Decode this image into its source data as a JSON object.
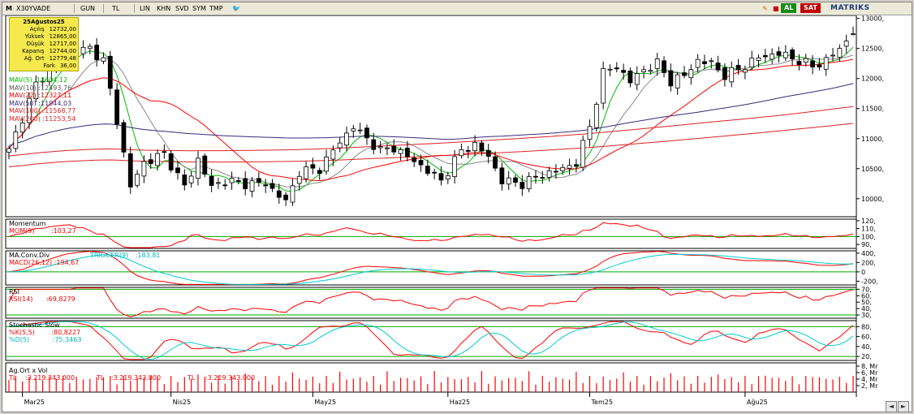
{
  "toolbar": {
    "m_label": "M",
    "symbol": "X30YVADE",
    "period": "GUN",
    "currency": "TL",
    "items": [
      "LIN",
      "KHN",
      "SVD",
      "SYM",
      "TMP"
    ],
    "buy_label": "AL",
    "sell_label": "SAT",
    "brand": "MATRIKS"
  },
  "info_box": {
    "date": "25Ağustos25",
    "rows": [
      {
        "label": "Açılış",
        "value": "12732,00"
      },
      {
        "label": "Yüksek",
        "value": "12865,00"
      },
      {
        "label": "Düşük",
        "value": "12717,00"
      },
      {
        "label": "Kapanış",
        "value": "12744,00"
      },
      {
        "label": "Ağ. Ort",
        "value": "12779,48"
      },
      {
        "label": "Fark",
        "value": "36,00"
      }
    ]
  },
  "colors": {
    "bullish": "#ffffff",
    "bearish": "#000000",
    "mav5": "#00bb00",
    "mav10": "#888888",
    "mav22": "#ff0000",
    "mav50": "#3a2a7a",
    "mav100": "#dd2222",
    "mav200": "#dd2222",
    "macd": "#ff0000",
    "trigger": "#00cccc",
    "rsi": "#ff0000",
    "stoch_k": "#ff0000",
    "stoch_d": "#00cccc",
    "volume": "#ff0000",
    "guide_line": "#00aa00"
  },
  "chart_data": {
    "type": "candlestick",
    "ylim": [
      9700,
      13050
    ],
    "yticks": [
      "13000,",
      "12500,",
      "12000,",
      "11500,",
      "11000,",
      "10500,",
      "10000,"
    ],
    "ytick_values": [
      13000,
      12500,
      12000,
      11500,
      11000,
      10500,
      10000
    ],
    "xticks": [
      {
        "label": "Mar25",
        "index": 2
      },
      {
        "label": "Nis25",
        "index": 24
      },
      {
        "label": "May25",
        "index": 45
      },
      {
        "label": "Haz25",
        "index": 65
      },
      {
        "label": "Tem25",
        "index": 86
      },
      {
        "label": "Ağu25",
        "index": 109
      }
    ],
    "close_anchors": [
      [
        0,
        10800
      ],
      [
        4,
        11900
      ],
      [
        8,
        12400
      ],
      [
        12,
        12500
      ],
      [
        14,
        12300
      ],
      [
        16,
        11300
      ],
      [
        18,
        10200
      ],
      [
        20,
        10600
      ],
      [
        23,
        10750
      ],
      [
        26,
        10200
      ],
      [
        28,
        10650
      ],
      [
        30,
        10200
      ],
      [
        32,
        10300
      ],
      [
        35,
        10250
      ],
      [
        38,
        10250
      ],
      [
        41,
        9950
      ],
      [
        43,
        10450
      ],
      [
        46,
        10500
      ],
      [
        49,
        10950
      ],
      [
        51,
        11200
      ],
      [
        53,
        11000
      ],
      [
        55,
        10800
      ],
      [
        57,
        10850
      ],
      [
        59,
        10700
      ],
      [
        61,
        10550
      ],
      [
        64,
        10300
      ],
      [
        67,
        10800
      ],
      [
        69,
        10900
      ],
      [
        71,
        10700
      ],
      [
        73,
        10300
      ],
      [
        76,
        10250
      ],
      [
        79,
        10400
      ],
      [
        82,
        10500
      ],
      [
        84,
        10600
      ],
      [
        86,
        11200
      ],
      [
        88,
        12100
      ],
      [
        90,
        12200
      ],
      [
        92,
        11950
      ],
      [
        94,
        12150
      ],
      [
        96,
        12250
      ],
      [
        98,
        11950
      ],
      [
        100,
        12050
      ],
      [
        102,
        12300
      ],
      [
        104,
        12250
      ],
      [
        106,
        12050
      ],
      [
        108,
        12150
      ],
      [
        111,
        12350
      ],
      [
        114,
        12420
      ],
      [
        117,
        12300
      ],
      [
        119,
        12200
      ],
      [
        121,
        12300
      ],
      [
        123,
        12500
      ],
      [
        125,
        12744
      ]
    ],
    "info_date": "25Ağustos25",
    "open": 12732.0,
    "high": 12865.0,
    "low": 12717.0,
    "close": 12744.0,
    "weighted_avg": 12779.48,
    "change": 36.0,
    "moving_averages": [
      {
        "name": "MAV(5)",
        "value": "12604,12",
        "period": 5,
        "color": "#00bb00"
      },
      {
        "name": "MAV(10)",
        "value": "12493,76",
        "period": 10,
        "color": "#888888"
      },
      {
        "name": "MAV(22)",
        "value": "12327,11",
        "period": 22,
        "color": "#ff0000"
      },
      {
        "name": "MAV(50)",
        "value": "11944,03",
        "period": 50,
        "color": "#3a2a7a"
      },
      {
        "name": "MAV(100)",
        "value": "11568,77",
        "period": 100,
        "color": "#dd2222"
      },
      {
        "name": "MAV(200)",
        "value": "11253,54",
        "period": 200,
        "color": "#dd2222"
      }
    ]
  },
  "panels": {
    "momentum": {
      "title": "Momentum",
      "label": "MOM(9)",
      "value": ":103,27",
      "yticks": [
        "120,",
        "110,",
        "100,",
        "90,"
      ],
      "ytick_values": [
        120,
        110,
        100,
        90
      ],
      "ylim": [
        85,
        122
      ],
      "guide": 100
    },
    "macd": {
      "title": "MA.Conv.Div",
      "label": "MACD(26,12)",
      "value": ":194,67",
      "trigger_label": "TRIGGER(9)",
      "trigger_value": ":183,81",
      "yticks": [
        "400,",
        "200,",
        "0",
        "-200,"
      ],
      "ytick_values": [
        400,
        200,
        0,
        -200
      ],
      "ylim": [
        -280,
        450
      ],
      "guide": 0
    },
    "rsi": {
      "title": "RSI",
      "label": "RSI(14)",
      "value": ":69,8279",
      "yticks": [
        "70,",
        "60,",
        "50,",
        "40,",
        "30,"
      ],
      "ytick_values": [
        70,
        60,
        50,
        40,
        30
      ],
      "ylim": [
        25,
        73
      ],
      "guides": [
        70,
        30
      ]
    },
    "stochastic": {
      "title": "Stochastic Slow",
      "k_label": "%K(5,5)",
      "k_value": ":80,8227",
      "d_label": "%D(5)",
      "d_value": ":75,3463",
      "yticks": [
        "80,",
        "60,",
        "40,",
        "20,"
      ],
      "ytick_values": [
        80,
        60,
        40,
        20
      ],
      "ylim": [
        12,
        92
      ],
      "guides": [
        80,
        20
      ]
    },
    "volume": {
      "title": "Ag.Ort x Vol",
      "label": "TL",
      "value": ":3.219.343.000",
      "label2": "TL",
      "value2": ":3.219.343.000",
      "label3": "TL",
      "value3": ":3.219.343.000",
      "yticks": [
        "8, Mr",
        "6, Mr",
        "4, Mr",
        "2, Mr"
      ],
      "ytick_values": [
        8,
        6,
        4,
        2
      ],
      "ylim": [
        0,
        9
      ]
    }
  }
}
